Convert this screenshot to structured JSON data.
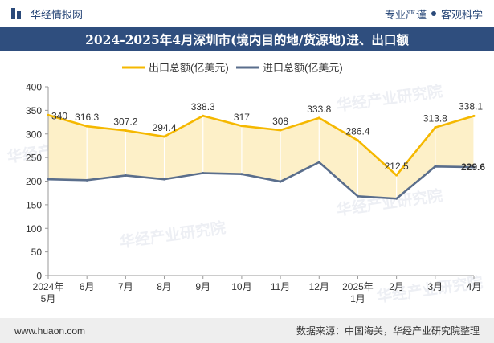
{
  "header": {
    "brand": "华经情报网",
    "tagline_left": "专业严谨",
    "tagline_right": "客观科学"
  },
  "chart_data": {
    "type": "line",
    "title": "2024-2025年4月深圳市(境内目的地/货源地)进、出口额",
    "categories": [
      [
        "2024年",
        "5月"
      ],
      [
        "6月"
      ],
      [
        "7月"
      ],
      [
        "8月"
      ],
      [
        "9月"
      ],
      [
        "10月"
      ],
      [
        "11月"
      ],
      [
        "12月"
      ],
      [
        "2025年",
        "1月"
      ],
      [
        "2月"
      ],
      [
        "3月"
      ],
      [
        "4月"
      ]
    ],
    "series": [
      {
        "name": "出口总额(亿美元)",
        "color": "#f5b800",
        "values": [
          340,
          316.3,
          307.2,
          294.4,
          338.3,
          317,
          308,
          333.8,
          286.4,
          212.5,
          313.8,
          338.1
        ],
        "labels": [
          "340",
          "316.3",
          "307.2",
          "294.4",
          "338.3",
          "317",
          "308",
          "333.8",
          "286.4",
          "212.5",
          "313.8",
          "338.1"
        ]
      },
      {
        "name": "进口总额(亿美元)",
        "color": "#5a6e8c",
        "values": [
          204,
          202,
          212,
          204,
          217,
          215,
          199,
          240,
          168,
          163,
          231,
          229.6
        ],
        "labels": [
          "",
          "",
          "",
          "",
          "",
          "",
          "",
          "",
          "",
          "",
          "",
          "229.6"
        ]
      }
    ],
    "ylim": [
      0,
      400
    ],
    "yticks": [
      0,
      50,
      100,
      150,
      200,
      250,
      300,
      350,
      400
    ],
    "fill_color": "#fdf0c8",
    "grid": false,
    "legend": "top-center"
  },
  "watermark": "华经产业研究院",
  "footer": {
    "website": "www.huaon.com",
    "source": "数据来源：中国海关，华经产业研究院整理"
  }
}
